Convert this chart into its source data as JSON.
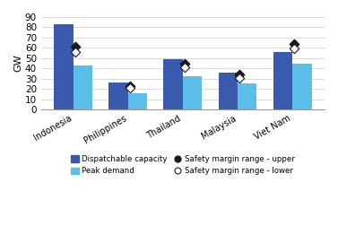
{
  "categories": [
    "Indonesia",
    "Philippines",
    "Thailand",
    "Malaysia",
    "Viet Nam"
  ],
  "dispatchable_capacity": [
    83,
    26,
    49,
    36,
    56
  ],
  "peak_demand": [
    43,
    16,
    32,
    25,
    45
  ],
  "safety_upper": [
    61,
    23,
    45,
    34,
    64
  ],
  "safety_lower": [
    56,
    21,
    41,
    31,
    59
  ],
  "bar_color_dispatch": "#3a5aad",
  "bar_color_peak": "#5bbee8",
  "marker_color": "#1a1a1a",
  "ylabel": "GW",
  "ylim": [
    0,
    90
  ],
  "yticks": [
    0,
    10,
    20,
    30,
    40,
    50,
    60,
    70,
    80,
    90
  ],
  "legend_dispatch": "Dispatchable capacity",
  "legend_peak": "Peak demand",
  "legend_upper": "Safety margin range - upper",
  "legend_lower": "Safety margin range - lower",
  "bar_width": 0.35,
  "figsize": [
    3.77,
    2.52
  ],
  "dpi": 100
}
